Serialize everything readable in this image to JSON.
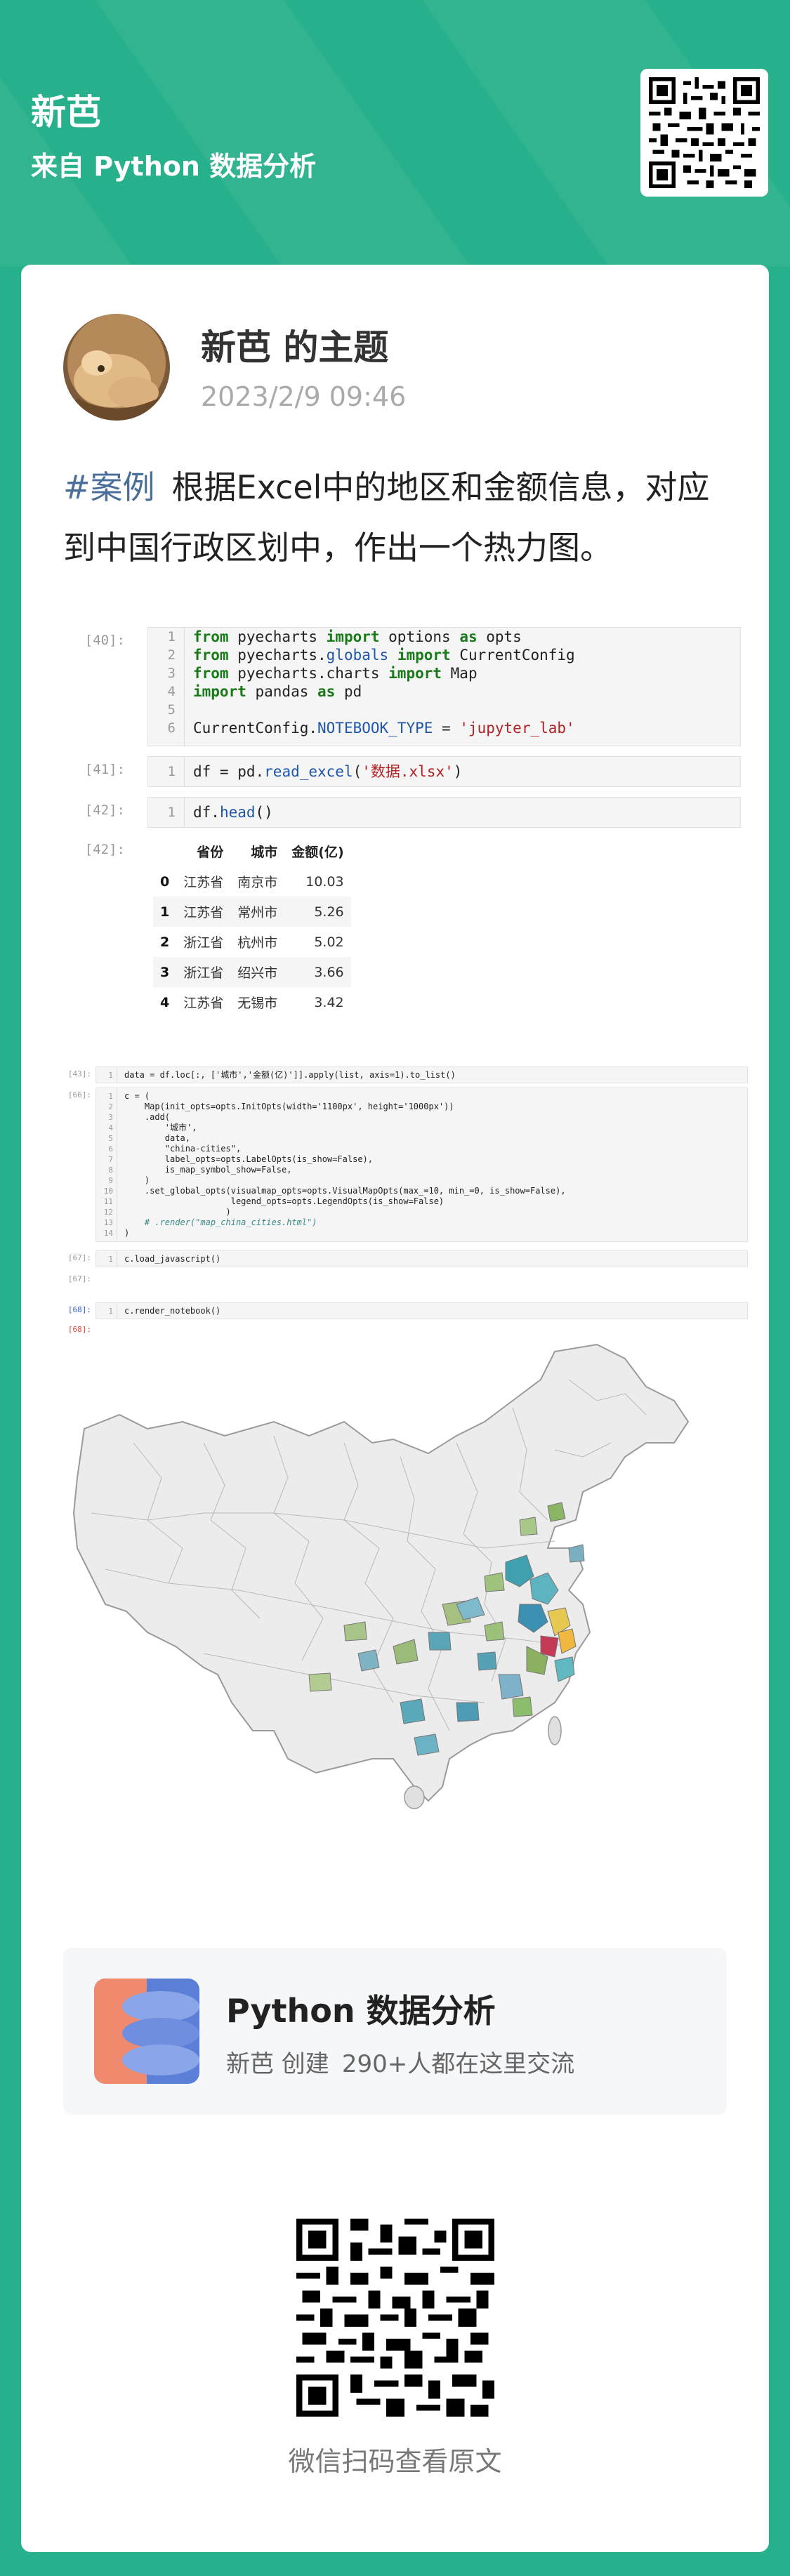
{
  "header": {
    "name": "新芭",
    "source": "来自 Python 数据分析"
  },
  "post": {
    "author": "新芭 的主题",
    "date": "2023/2/9 09:46",
    "tag": "#案例",
    "text": "根据Excel中的地区和金额信息，对应到中国行政区划中，作出一个热力图。"
  },
  "notebook1": {
    "cells": [
      {
        "prompt": "[40]:",
        "lines": [
          "1",
          "2",
          "3",
          "4",
          "5",
          "6"
        ]
      },
      {
        "prompt": "[41]:",
        "lines": [
          "1"
        ]
      },
      {
        "prompt": "[42]:",
        "lines": [
          "1"
        ]
      }
    ],
    "out_prompt": "[42]:",
    "code40": {
      "l1a": "from",
      "l1b": " pyecharts ",
      "l1c": "import",
      "l1d": " options ",
      "l1e": "as",
      "l1f": " opts",
      "l2a": "from",
      "l2b": " pyecharts.",
      "l2c": "globals",
      "l2d": " ",
      "l2e": "import",
      "l2f": " CurrentConfig",
      "l3a": "from",
      "l3b": " pyecharts.charts ",
      "l3c": "import",
      "l3d": " Map",
      "l4a": "import",
      "l4b": " pandas ",
      "l4c": "as",
      "l4d": " pd",
      "l6a": "CurrentConfig.",
      "l6b": "NOTEBOOK_TYPE",
      "l6c": " = ",
      "l6d": "'jupyter_lab'"
    },
    "code41": {
      "a": "df = pd.",
      "b": "read_excel",
      "c": "(",
      "d": "'数据.xlsx'",
      "e": ")"
    },
    "code42": {
      "a": "df.",
      "b": "head",
      "c": "()"
    },
    "table": {
      "columns": [
        "",
        "省份",
        "城市",
        "金额(亿)"
      ],
      "rows": [
        [
          "0",
          "江苏省",
          "南京市",
          "10.03"
        ],
        [
          "1",
          "江苏省",
          "常州市",
          "5.26"
        ],
        [
          "2",
          "浙江省",
          "杭州市",
          "5.02"
        ],
        [
          "3",
          "浙江省",
          "绍兴市",
          "3.66"
        ],
        [
          "4",
          "江苏省",
          "无锡市",
          "3.42"
        ]
      ]
    }
  },
  "notebook2": {
    "p43": "[43]:",
    "p66": "[66]:",
    "p67": "[67]:",
    "p67b": "[67]:",
    "p68": "[68]:",
    "p68b": "[68]:",
    "c43": "data = df.loc[:, ['城市','金额(亿)']].apply(list, axis=1).to_list()",
    "c66": [
      "c = (",
      "    Map(init_opts=opts.InitOpts(width='1100px', height='1000px'))",
      "    .add(",
      "        '城市',",
      "        data,",
      "        \"china-cities\",",
      "        label_opts=opts.LabelOpts(is_show=False),",
      "        is_map_symbol_show=False,",
      "    )",
      "    .set_global_opts(visualmap_opts=opts.VisualMapOpts(max_=10, min_=0, is_show=False),",
      "                     legend_opts=opts.LegendOpts(is_show=False)",
      "                    )",
      "    # .render(\"map_china_cities.html\")",
      ")"
    ],
    "c67": "c.load_javascript()",
    "c68": "c.render_notebook()"
  },
  "group": {
    "title": "Python 数据分析",
    "creator": "新芭 创建",
    "members": "290+人都在这里交流"
  },
  "footer": {
    "caption": "微信扫码查看原文"
  },
  "colors": {
    "brand_green": "#27b08c",
    "tag_blue": "#4a6d9a"
  }
}
